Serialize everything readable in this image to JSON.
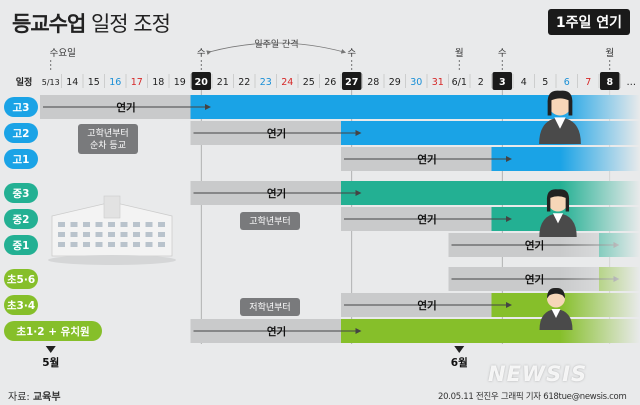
{
  "title_bold": "등교수업",
  "title_rest": "일정 조정",
  "badge": "1주일 연기",
  "source_label": "자료:",
  "source_value": "교육부",
  "credit": "20.05.11 전진우 그래픽 기자 618tue@newsis.com",
  "watermark": "NEWSIS",
  "colors": {
    "blue": "#1aa3e6",
    "teal": "#23b093",
    "green": "#86bf2a",
    "gray": "#c9cacb",
    "dark": "#1a1a1a"
  },
  "chart_data": {
    "type": "table",
    "row_header": "일정",
    "dates": [
      "5/13",
      "14",
      "15",
      "16",
      "17",
      "18",
      "19",
      "20",
      "21",
      "22",
      "23",
      "24",
      "25",
      "26",
      "27",
      "28",
      "29",
      "30",
      "31",
      "6/1",
      "2",
      "3",
      "4",
      "5",
      "6",
      "7",
      "8",
      "…"
    ],
    "date_colors": [
      "#222",
      "#222",
      "#222",
      "#1a8fd6",
      "#d62828",
      "#222",
      "#222",
      "#fff",
      "#222",
      "#222",
      "#1a8fd6",
      "#d62828",
      "#222",
      "#222",
      "#fff",
      "#222",
      "#222",
      "#1a8fd6",
      "#d62828",
      "#222",
      "#222",
      "#fff",
      "#222",
      "#222",
      "#1a8fd6",
      "#d62828",
      "#fff",
      "#222"
    ],
    "highlighted": [
      7,
      14,
      21,
      26
    ],
    "markers": [
      {
        "index": 0,
        "label": "수요일"
      },
      {
        "index": 7,
        "label": "수"
      },
      {
        "index": 14,
        "label": "수"
      },
      {
        "index": 19,
        "label": "월"
      },
      {
        "index": 21,
        "label": "수"
      },
      {
        "index": 26,
        "label": "월"
      }
    ],
    "interval_label": "일주일 간격",
    "interval": [
      7,
      14
    ],
    "groups": [
      {
        "color": "#1aa3e6",
        "rows": [
          {
            "label": "고3",
            "original": 0,
            "new": 7
          },
          {
            "label": "고2",
            "original": 7,
            "new": 14
          },
          {
            "label": "고1",
            "original": 14,
            "new": 21
          }
        ],
        "note": [
          "고학년부터",
          "순차 등교"
        ]
      },
      {
        "color": "#23b093",
        "rows": [
          {
            "label": "중3",
            "original": 7,
            "new": 14
          },
          {
            "label": "중2",
            "original": 14,
            "new": 21
          },
          {
            "label": "중1",
            "original": 19,
            "new": 26
          }
        ],
        "note": [
          "고학년부터"
        ]
      },
      {
        "color": "#86bf2a",
        "rows": [
          {
            "label": "초5·6",
            "original": 19,
            "new": 26
          },
          {
            "label": "초3·4",
            "original": 14,
            "new": 21
          },
          {
            "label": "초1·2 + 유치원",
            "original": 7,
            "new": 14
          }
        ],
        "note": [
          "저학년부터"
        ]
      }
    ],
    "bar_label": "연기",
    "months": [
      {
        "index": 0,
        "label": "5월"
      },
      {
        "index": 19,
        "label": "6월"
      }
    ]
  }
}
